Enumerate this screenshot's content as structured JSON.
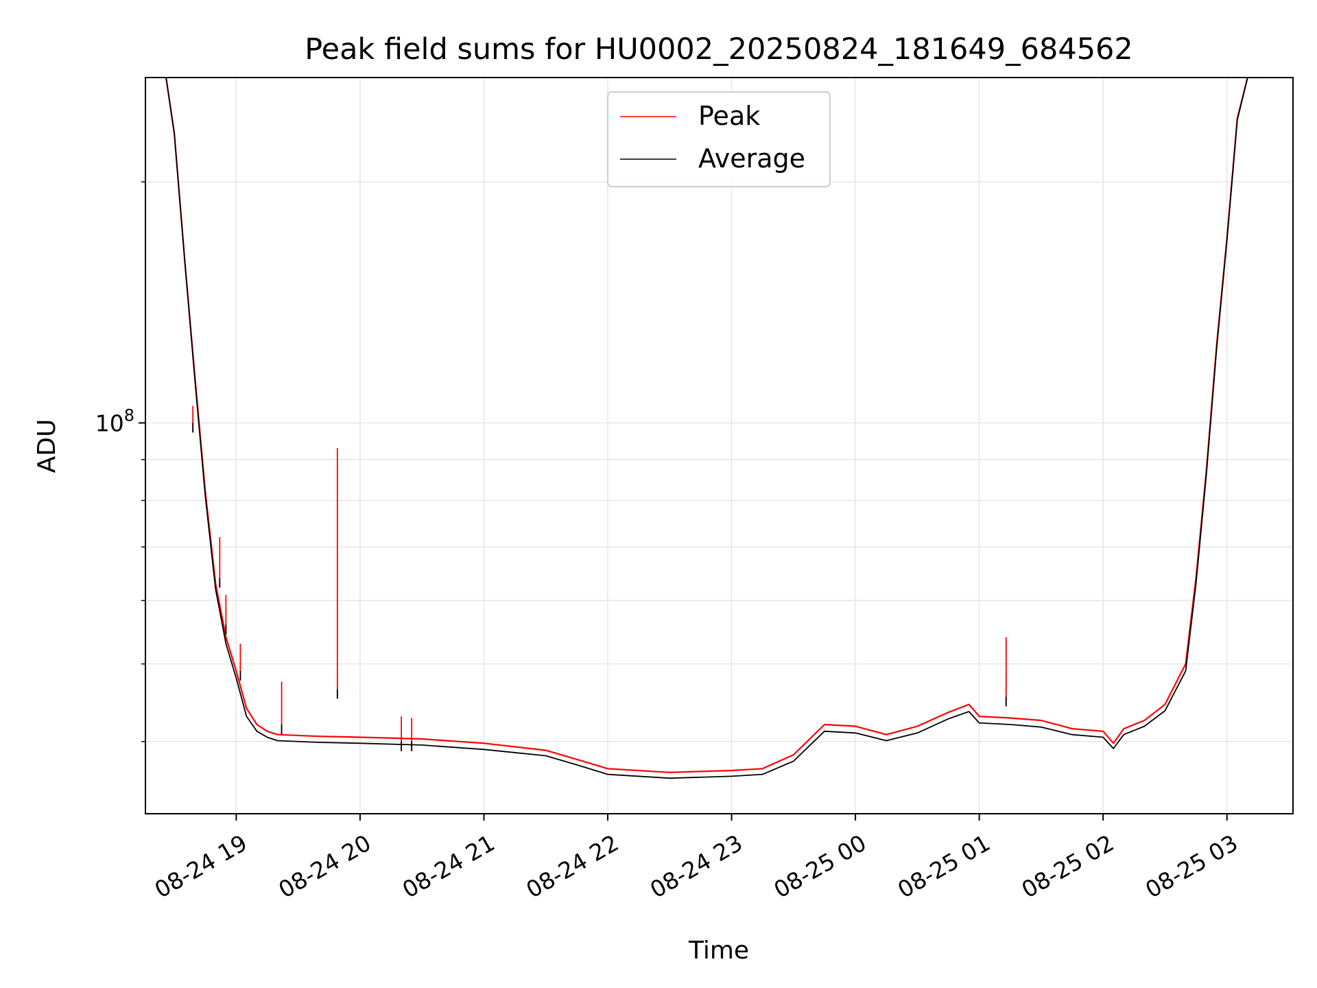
{
  "chart_data": {
    "type": "line",
    "title": "Peak field sums for HU0002_20250824_181649_684562",
    "xlabel": "Time",
    "ylabel": "ADU",
    "yscale": "log",
    "grid": true,
    "legend": {
      "placement": "top-center"
    },
    "xlim": [
      "2025-08-24 18:16",
      "2025-08-25 03:32"
    ],
    "ylim": [
      32500000.0,
      270000000.0
    ],
    "x_ticks": [
      {
        "t": "2025-08-24 19:00",
        "label": "08-24 19"
      },
      {
        "t": "2025-08-24 20:00",
        "label": "08-24 20"
      },
      {
        "t": "2025-08-24 21:00",
        "label": "08-24 21"
      },
      {
        "t": "2025-08-24 22:00",
        "label": "08-24 22"
      },
      {
        "t": "2025-08-24 23:00",
        "label": "08-24 23"
      },
      {
        "t": "2025-08-25 00:00",
        "label": "08-25 00"
      },
      {
        "t": "2025-08-25 01:00",
        "label": "08-25 01"
      },
      {
        "t": "2025-08-25 02:00",
        "label": "08-25 02"
      },
      {
        "t": "2025-08-25 03:00",
        "label": "08-25 03"
      }
    ],
    "y_major_ticks": [
      {
        "value": 100000000.0,
        "base": "10",
        "exp": "8"
      }
    ],
    "y_minor_ticks": [
      40000000.0,
      50000000.0,
      60000000.0,
      70000000.0,
      80000000.0,
      90000000.0,
      200000000.0
    ],
    "series": [
      {
        "name": "Peak",
        "color": "#ff0000",
        "points": [
          [
            "2025-08-24 18:26",
            270000000.0
          ],
          [
            "2025-08-24 18:30",
            230000000.0
          ],
          [
            "2025-08-24 18:35",
            160000000.0
          ],
          [
            "2025-08-24 18:40",
            114000000.0
          ],
          [
            "2025-08-24 18:45",
            82000000.0
          ],
          [
            "2025-08-24 18:50",
            63000000.0
          ],
          [
            "2025-08-24 18:55",
            54000000.0
          ],
          [
            "2025-08-24 19:00",
            49000000.0
          ],
          [
            "2025-08-24 19:05",
            44000000.0
          ],
          [
            "2025-08-24 19:10",
            42000000.0
          ],
          [
            "2025-08-24 19:15",
            41200000.0
          ],
          [
            "2025-08-24 19:20",
            40800000.0
          ],
          [
            "2025-08-24 19:40",
            40600000.0
          ],
          [
            "2025-08-24 20:00",
            40500000.0
          ],
          [
            "2025-08-24 20:30",
            40300000.0
          ],
          [
            "2025-08-24 21:00",
            39800000.0
          ],
          [
            "2025-08-24 21:30",
            39000000.0
          ],
          [
            "2025-08-24 21:45",
            38000000.0
          ],
          [
            "2025-08-24 22:00",
            37000000.0
          ],
          [
            "2025-08-24 22:30",
            36600000.0
          ],
          [
            "2025-08-24 23:00",
            36800000.0
          ],
          [
            "2025-08-24 23:15",
            37000000.0
          ],
          [
            "2025-08-24 23:30",
            38500000.0
          ],
          [
            "2025-08-24 23:45",
            42000000.0
          ],
          [
            "2025-08-25 00:00",
            41800000.0
          ],
          [
            "2025-08-25 00:15",
            40800000.0
          ],
          [
            "2025-08-25 00:30",
            41800000.0
          ],
          [
            "2025-08-25 00:45",
            43500000.0
          ],
          [
            "2025-08-25 00:55",
            44500000.0
          ],
          [
            "2025-08-25 01:00",
            43000000.0
          ],
          [
            "2025-08-25 01:15",
            42800000.0
          ],
          [
            "2025-08-25 01:30",
            42500000.0
          ],
          [
            "2025-08-25 01:45",
            41500000.0
          ],
          [
            "2025-08-25 02:00",
            41200000.0
          ],
          [
            "2025-08-25 02:05",
            39800000.0
          ],
          [
            "2025-08-25 02:10",
            41500000.0
          ],
          [
            "2025-08-25 02:20",
            42500000.0
          ],
          [
            "2025-08-25 02:30",
            44500000.0
          ],
          [
            "2025-08-25 02:40",
            50000000.0
          ],
          [
            "2025-08-25 02:45",
            64000000.0
          ],
          [
            "2025-08-25 02:50",
            87000000.0
          ],
          [
            "2025-08-25 02:55",
            125000000.0
          ],
          [
            "2025-08-25 03:00",
            170000000.0
          ],
          [
            "2025-08-25 03:05",
            240000000.0
          ],
          [
            "2025-08-25 03:10",
            270000000.0
          ],
          [
            "2025-08-25 03:32",
            270000000.0
          ]
        ]
      },
      {
        "name": "Average",
        "color": "#000000",
        "points": [
          [
            "2025-08-24 18:26",
            270000000.0
          ],
          [
            "2025-08-24 18:30",
            230000000.0
          ],
          [
            "2025-08-24 18:35",
            160000000.0
          ],
          [
            "2025-08-24 18:40",
            113000000.0
          ],
          [
            "2025-08-24 18:45",
            81000000.0
          ],
          [
            "2025-08-24 18:50",
            62000000.0
          ],
          [
            "2025-08-24 18:55",
            53000000.0
          ],
          [
            "2025-08-24 19:00",
            48000000.0
          ],
          [
            "2025-08-24 19:05",
            43000000.0
          ],
          [
            "2025-08-24 19:10",
            41200000.0
          ],
          [
            "2025-08-24 19:15",
            40500000.0
          ],
          [
            "2025-08-24 19:20",
            40100000.0
          ],
          [
            "2025-08-24 19:40",
            39900000.0
          ],
          [
            "2025-08-24 20:00",
            39800000.0
          ],
          [
            "2025-08-24 20:30",
            39600000.0
          ],
          [
            "2025-08-24 21:00",
            39100000.0
          ],
          [
            "2025-08-24 21:30",
            38400000.0
          ],
          [
            "2025-08-24 21:45",
            37400000.0
          ],
          [
            "2025-08-24 22:00",
            36400000.0
          ],
          [
            "2025-08-24 22:30",
            36000000.0
          ],
          [
            "2025-08-24 23:00",
            36200000.0
          ],
          [
            "2025-08-24 23:15",
            36400000.0
          ],
          [
            "2025-08-24 23:30",
            37800000.0
          ],
          [
            "2025-08-24 23:45",
            41200000.0
          ],
          [
            "2025-08-25 00:00",
            41000000.0
          ],
          [
            "2025-08-25 00:15",
            40100000.0
          ],
          [
            "2025-08-25 00:30",
            41000000.0
          ],
          [
            "2025-08-25 00:45",
            42700000.0
          ],
          [
            "2025-08-25 00:55",
            43600000.0
          ],
          [
            "2025-08-25 01:00",
            42200000.0
          ],
          [
            "2025-08-25 01:15",
            42000000.0
          ],
          [
            "2025-08-25 01:30",
            41700000.0
          ],
          [
            "2025-08-25 01:45",
            40800000.0
          ],
          [
            "2025-08-25 02:00",
            40500000.0
          ],
          [
            "2025-08-25 02:05",
            39200000.0
          ],
          [
            "2025-08-25 02:10",
            40800000.0
          ],
          [
            "2025-08-25 02:20",
            41800000.0
          ],
          [
            "2025-08-25 02:30",
            43700000.0
          ],
          [
            "2025-08-25 02:40",
            49000000.0
          ],
          [
            "2025-08-25 02:45",
            63000000.0
          ],
          [
            "2025-08-25 02:50",
            86000000.0
          ],
          [
            "2025-08-25 02:55",
            124000000.0
          ],
          [
            "2025-08-25 03:00",
            169000000.0
          ],
          [
            "2025-08-25 03:05",
            239000000.0
          ],
          [
            "2025-08-25 03:10",
            270000000.0
          ],
          [
            "2025-08-25 03:32",
            270000000.0
          ]
        ]
      }
    ],
    "spikes": [
      {
        "t": "2025-08-24 18:39",
        "peak": 105000000.0,
        "avg": 100000000.0
      },
      {
        "t": "2025-08-24 18:52",
        "peak": 72000000.0,
        "avg": 64000000.0
      },
      {
        "t": "2025-08-24 18:55",
        "peak": 61000000.0,
        "avg": 56000000.0
      },
      {
        "t": "2025-08-24 19:02",
        "peak": 53000000.0,
        "avg": 49000000.0
      },
      {
        "t": "2025-08-24 19:22",
        "peak": 47500000.0,
        "avg": 42000000.0
      },
      {
        "t": "2025-08-24 19:49",
        "peak": 93000000.0,
        "avg": 46500000.0
      },
      {
        "t": "2025-08-24 20:20",
        "peak": 43000000.0,
        "avg": 40000000.0
      },
      {
        "t": "2025-08-24 20:25",
        "peak": 42800000.0,
        "avg": 40000000.0
      },
      {
        "t": "2025-08-25 01:13",
        "peak": 54000000.0,
        "avg": 45500000.0
      }
    ]
  }
}
